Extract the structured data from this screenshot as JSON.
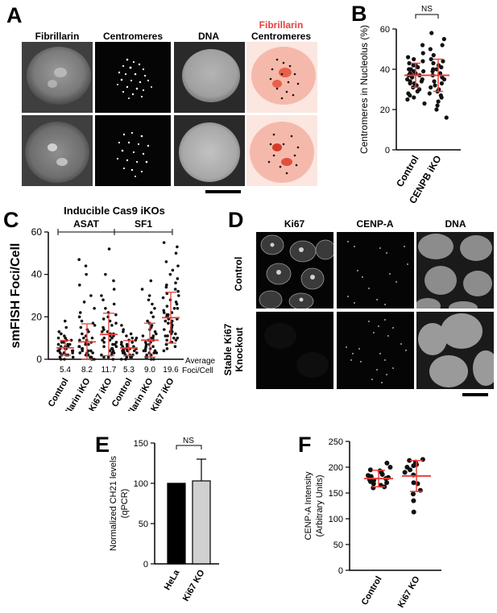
{
  "figure": {
    "panel_letters": {
      "a": "A",
      "b": "B",
      "c": "C",
      "d": "D",
      "e": "E",
      "f": "F"
    }
  },
  "panel_a": {
    "column_titles": [
      "Fibrillarin",
      "Centromeres",
      "DNA"
    ],
    "merge_title_line1": "Fibrillarin",
    "merge_title_line2": "Centromeres",
    "merge_title_color": "#e8403a"
  },
  "panel_d": {
    "column_titles": [
      "Ki67",
      "CENP-A",
      "DNA"
    ],
    "row_label_1": "Control",
    "row_label_2_line1": "Stable Ki67",
    "row_label_2_line2": "Knockout"
  },
  "panel_c": {
    "title": "Inducible Cas9 iKOs",
    "group_labels": [
      "ASAT",
      "SF1"
    ],
    "averages_header_line1": "Average",
    "averages_header_line2": "Foci/Cell",
    "averages": [
      "5.4",
      "8.2",
      "11.7",
      "5.3",
      "9.0",
      "19.6"
    ]
  },
  "colors": {
    "red_mark": "#e8403a",
    "dot": "#111111",
    "bar_black": "#000000",
    "bar_grey": "#d0d0d0"
  },
  "chart_data": [
    {
      "panel": "B",
      "type": "scatter",
      "ylabel": "Centromeres in Nucleolus (%)",
      "ylim": [
        0,
        60
      ],
      "yticks": [
        0,
        20,
        40,
        60
      ],
      "categories": [
        "Control",
        "CENPB iKO"
      ],
      "means": [
        37,
        37
      ],
      "sd": [
        6,
        8
      ],
      "annotation": "NS",
      "series": [
        {
          "values": [
            52,
            48,
            46,
            45,
            44,
            43,
            42,
            42,
            41,
            40,
            40,
            39,
            39,
            38,
            38,
            37,
            37,
            37,
            36,
            36,
            35,
            35,
            34,
            34,
            33,
            33,
            32,
            31,
            30,
            29,
            28,
            27,
            26,
            25,
            23
          ]
        },
        {
          "values": [
            58,
            55,
            52,
            50,
            47,
            45,
            44,
            43,
            42,
            41,
            40,
            40,
            39,
            38,
            37,
            36,
            35,
            34,
            33,
            32,
            31,
            30,
            29,
            28,
            27,
            26,
            24,
            22,
            20,
            16
          ]
        }
      ]
    },
    {
      "panel": "C",
      "type": "scatter",
      "ylabel": "smFISH Foci/Cell",
      "ylim": [
        0,
        60
      ],
      "yticks": [
        0,
        20,
        40,
        60
      ],
      "categories": [
        "Control",
        "Fibrillarin iKO",
        "Ki67 iKO",
        "Control",
        "Fibrillarin iKO",
        "Ki67 iKO"
      ],
      "means": [
        5.4,
        8.2,
        11.7,
        5.3,
        9.0,
        19.6
      ],
      "sd": [
        3.5,
        8.5,
        10,
        3.5,
        8,
        12
      ],
      "series": [
        {
          "values": [
            18,
            15,
            13,
            12,
            11,
            10,
            10,
            9,
            9,
            8,
            8,
            7,
            7,
            7,
            6,
            6,
            6,
            5,
            5,
            5,
            5,
            4,
            4,
            4,
            4,
            3,
            3,
            3,
            3,
            2,
            2,
            2,
            1,
            1,
            0,
            0
          ]
        },
        {
          "values": [
            47,
            44,
            40,
            35,
            30,
            27,
            24,
            22,
            20,
            18,
            17,
            16,
            15,
            14,
            13,
            12,
            11,
            10,
            10,
            9,
            9,
            8,
            8,
            7,
            7,
            6,
            6,
            5,
            5,
            5,
            4,
            4,
            4,
            3,
            3,
            3,
            2,
            2,
            2,
            1,
            1,
            1,
            0,
            0,
            0
          ]
        },
        {
          "values": [
            52,
            40,
            37,
            33,
            30,
            28,
            26,
            24,
            22,
            21,
            20,
            19,
            18,
            17,
            16,
            15,
            14,
            13,
            13,
            12,
            12,
            11,
            11,
            10,
            10,
            9,
            9,
            8,
            8,
            7,
            7,
            6,
            6,
            5,
            5,
            4,
            4,
            3,
            3,
            2,
            2,
            1,
            1,
            0
          ]
        },
        {
          "values": [
            16,
            14,
            13,
            12,
            11,
            10,
            10,
            9,
            9,
            8,
            8,
            7,
            7,
            6,
            6,
            6,
            5,
            5,
            5,
            5,
            4,
            4,
            4,
            4,
            3,
            3,
            3,
            3,
            2,
            2,
            2,
            1,
            1,
            1,
            0,
            0
          ]
        },
        {
          "values": [
            37,
            33,
            30,
            28,
            26,
            24,
            22,
            20,
            18,
            17,
            16,
            15,
            14,
            13,
            12,
            11,
            11,
            10,
            10,
            9,
            9,
            8,
            8,
            7,
            7,
            6,
            6,
            5,
            5,
            4,
            4,
            4,
            3,
            3,
            3,
            2,
            2,
            1,
            1,
            0,
            0
          ]
        },
        {
          "values": [
            55,
            53,
            50,
            46,
            44,
            42,
            40,
            38,
            36,
            35,
            34,
            33,
            32,
            31,
            30,
            29,
            28,
            27,
            26,
            25,
            24,
            24,
            23,
            22,
            22,
            21,
            21,
            20,
            20,
            19,
            19,
            18,
            18,
            17,
            17,
            16,
            16,
            15,
            15,
            14,
            14,
            13,
            13,
            12,
            12,
            11,
            11,
            10,
            10,
            9,
            9,
            8,
            8,
            7,
            7,
            6,
            5,
            4
          ]
        }
      ]
    },
    {
      "panel": "E",
      "type": "bar",
      "ylabel": "Normalized CH21 levels (qPCR)",
      "ylabel_line1": "Normalized CH21 levels",
      "ylabel_line2": "(qPCR)",
      "ylim": [
        0,
        150
      ],
      "yticks": [
        0,
        50,
        100,
        150
      ],
      "categories": [
        "HeLa",
        "Ki67 KO"
      ],
      "values": [
        100,
        103
      ],
      "error": [
        0,
        27
      ],
      "annotation": "NS"
    },
    {
      "panel": "F",
      "type": "scatter",
      "ylabel": "CENP-A Intensity (Arbitrary Units)",
      "ylabel_line1": "CENP-A Intensity",
      "ylabel_line2": "(Arbitrary Units)",
      "ylim": [
        0,
        250
      ],
      "yticks": [
        0,
        50,
        100,
        150,
        200,
        250
      ],
      "categories": [
        "Control",
        "Ki67 KO"
      ],
      "means": [
        178,
        183
      ],
      "sd": [
        16,
        30
      ],
      "series": [
        {
          "values": [
            208,
            200,
            195,
            193,
            190,
            186,
            184,
            182,
            180,
            178,
            176,
            175,
            172,
            170,
            168,
            165,
            162,
            160
          ]
        },
        {
          "values": [
            215,
            213,
            210,
            205,
            203,
            200,
            195,
            190,
            185,
            170,
            168,
            155,
            148,
            135,
            113
          ]
        }
      ]
    }
  ]
}
